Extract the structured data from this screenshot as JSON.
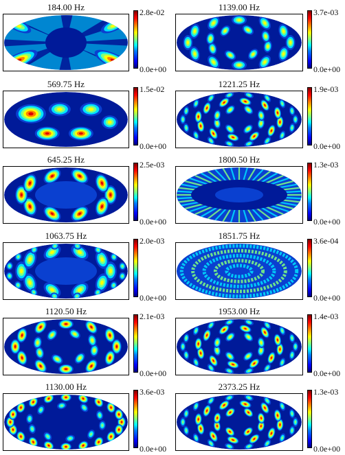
{
  "panels": [
    {
      "title": "184.00 Hz",
      "max": "2.8e-02",
      "min": "0.0e+00",
      "pattern": "star"
    },
    {
      "title": "1139.00 Hz",
      "max": "3.7e-03",
      "min": "0.0e+00",
      "pattern": "ring2"
    },
    {
      "title": "569.75 Hz",
      "max": "1.5e-02",
      "min": "0.0e+00",
      "pattern": "lobes"
    },
    {
      "title": "1221.25 Hz",
      "max": "1.9e-03",
      "min": "0.0e+00",
      "pattern": "ring3"
    },
    {
      "title": "645.25 Hz",
      "max": "2.5e-03",
      "min": "0.0e+00",
      "pattern": "ring1"
    },
    {
      "title": "1800.50 Hz",
      "max": "1.3e-03",
      "min": "0.0e+00",
      "pattern": "rays"
    },
    {
      "title": "1063.75 Hz",
      "max": "2.0e-03",
      "min": "0.0e+00",
      "pattern": "ring1b"
    },
    {
      "title": "1851.75 Hz",
      "max": "3.6e-04",
      "min": "0.0e+00",
      "pattern": "concentric"
    },
    {
      "title": "1120.50 Hz",
      "max": "2.1e-03",
      "min": "0.0e+00",
      "pattern": "ring2b"
    },
    {
      "title": "1953.00 Hz",
      "max": "1.4e-03",
      "min": "0.0e+00",
      "pattern": "ring3b"
    },
    {
      "title": "1130.00 Hz",
      "max": "3.6e-03",
      "min": "0.0e+00",
      "pattern": "edge"
    },
    {
      "title": "2373.25 Hz",
      "max": "1.3e-03",
      "min": "0.0e+00",
      "pattern": "ring3c"
    }
  ],
  "colors": {
    "background": "#00007f",
    "dark_blue": "#001a99",
    "mid_blue": "#0a40d0",
    "cyan": "#00e0ff",
    "green": "#80ff80",
    "yellow": "#ffff00",
    "orange": "#ff8000",
    "red": "#e00000"
  }
}
